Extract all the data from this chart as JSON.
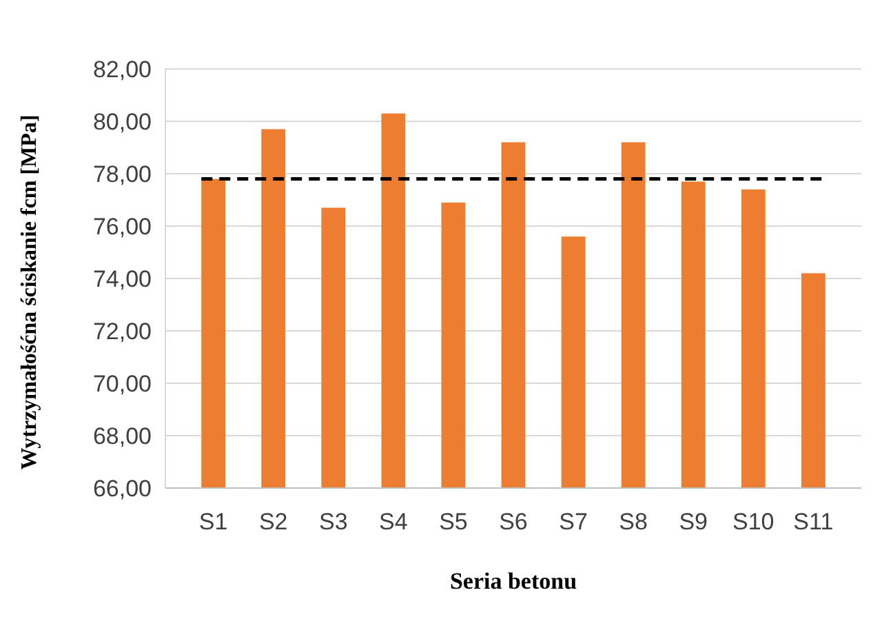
{
  "chart_data": {
    "type": "bar",
    "xlabel": "Seria betonu",
    "ylabel": "Wytrzymałośćna ściskanie fcm [MPa]",
    "categories": [
      "S1",
      "S2",
      "S3",
      "S4",
      "S5",
      "S6",
      "S7",
      "S8",
      "S9",
      "S10",
      "S11"
    ],
    "values": [
      77.8,
      79.7,
      76.7,
      80.3,
      76.9,
      79.2,
      75.6,
      79.2,
      77.7,
      77.4,
      74.2
    ],
    "color": "#ed7d31",
    "ylim": [
      66,
      82
    ],
    "yticks": [
      {
        "value": 66,
        "label": "66,00"
      },
      {
        "value": 68,
        "label": "68,00"
      },
      {
        "value": 70,
        "label": "70,00"
      },
      {
        "value": 72,
        "label": "72,00"
      },
      {
        "value": 74,
        "label": "74,00"
      },
      {
        "value": 76,
        "label": "76,00"
      },
      {
        "value": 78,
        "label": "78,00"
      },
      {
        "value": 80,
        "label": "80,00"
      },
      {
        "value": 82,
        "label": "82,00"
      }
    ],
    "grid": "y",
    "ref_lines": [
      {
        "axis": "y",
        "value": 77.8,
        "color": "#000000",
        "line_style": "dashed"
      }
    ]
  }
}
